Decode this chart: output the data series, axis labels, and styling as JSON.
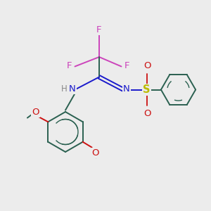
{
  "bg_color": "#ececec",
  "bond_color": "#2a6050",
  "N_color": "#1a1acc",
  "F_color": "#cc44bb",
  "O_color": "#cc1111",
  "S_color": "#bbbb00",
  "H_color": "#888888",
  "figsize": [
    3.0,
    3.0
  ],
  "dpi": 100,
  "xlim": [
    0,
    10
  ],
  "ylim": [
    0,
    10
  ]
}
